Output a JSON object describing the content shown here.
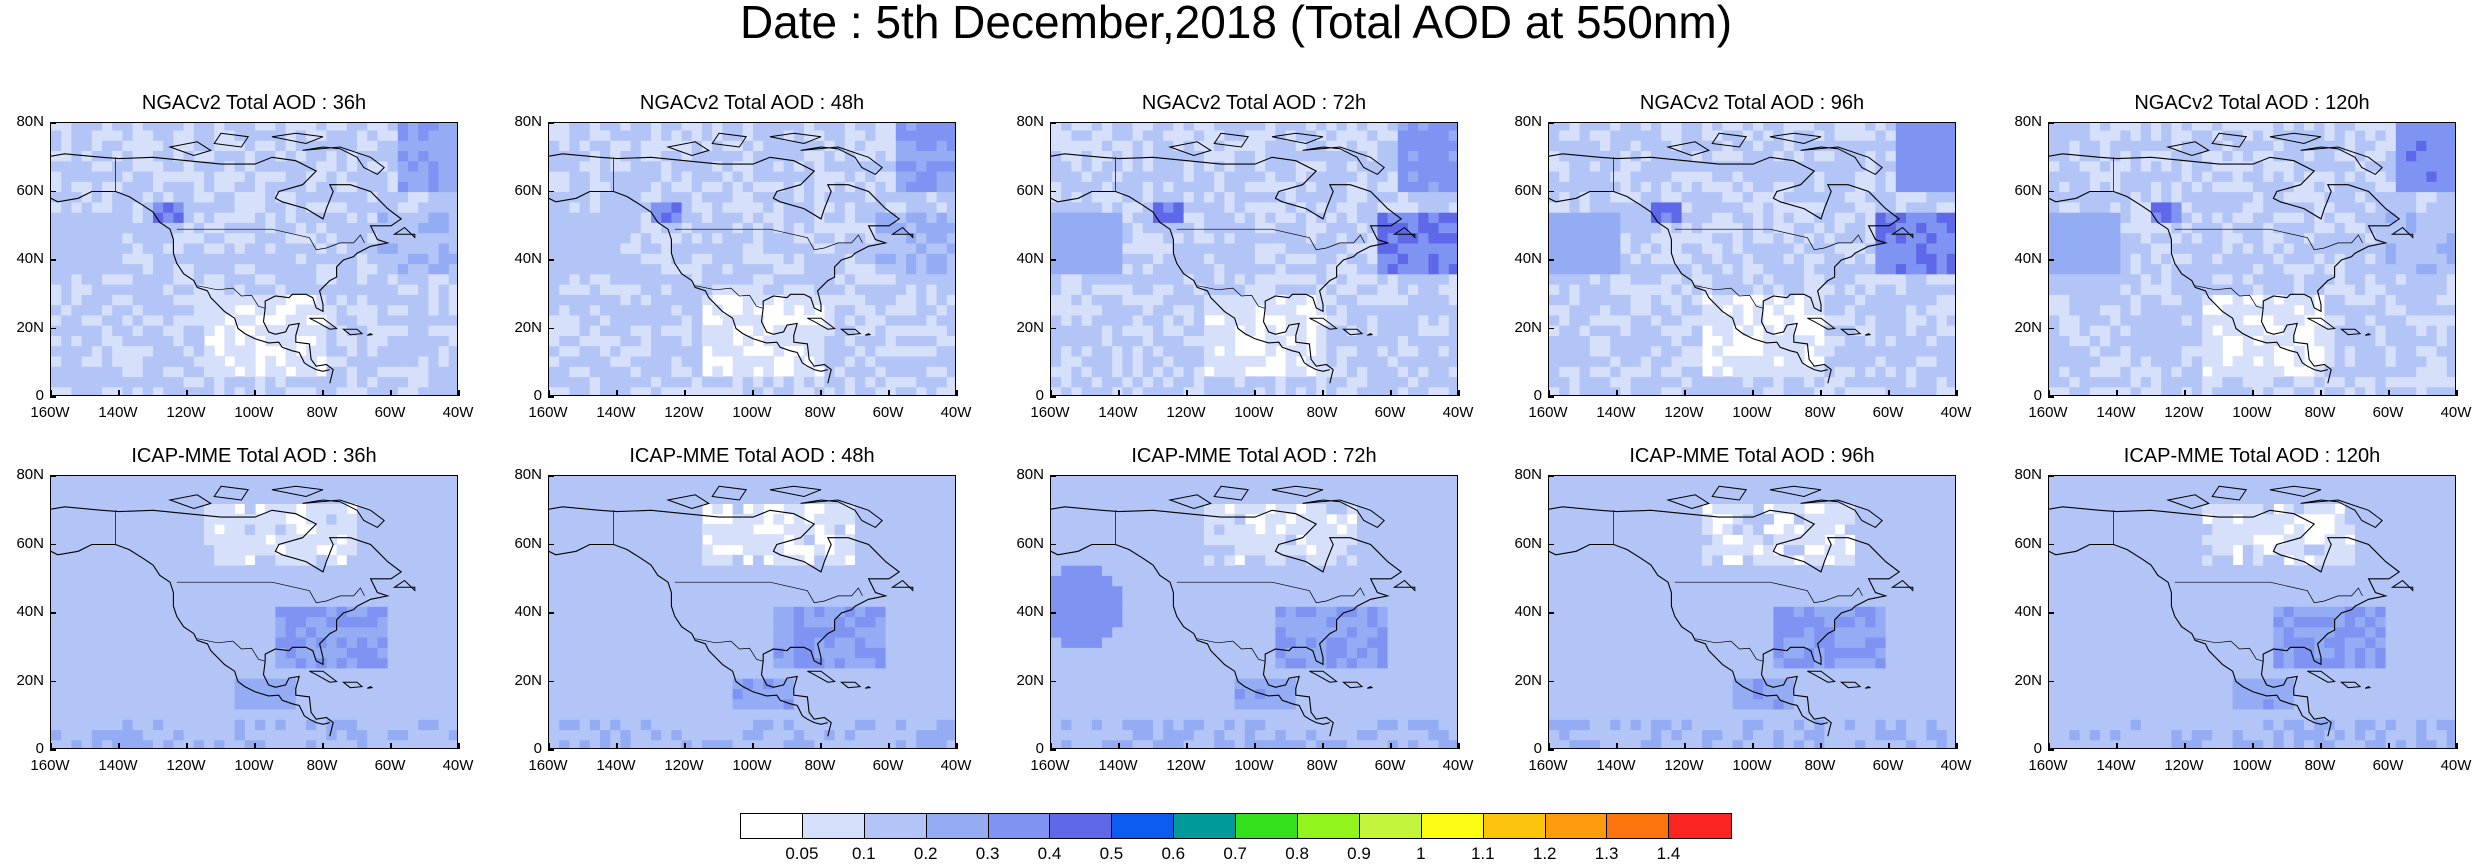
{
  "title": "Date : 5th December,2018 (Total AOD at 550nm)",
  "y_ticks": [
    "80N",
    "60N",
    "40N",
    "20N",
    "0"
  ],
  "x_ticks": [
    "160W",
    "140W",
    "120W",
    "100W",
    "80W",
    "60W",
    "40W"
  ],
  "panels": [
    {
      "title": "NGACv2 Total AOD : 36h"
    },
    {
      "title": "NGACv2 Total AOD : 48h"
    },
    {
      "title": "NGACv2 Total AOD : 72h"
    },
    {
      "title": "NGACv2 Total AOD : 96h"
    },
    {
      "title": "NGACv2 Total AOD : 120h"
    },
    {
      "title": "ICAP-MME Total AOD : 36h"
    },
    {
      "title": "ICAP-MME Total AOD : 48h"
    },
    {
      "title": "ICAP-MME Total AOD : 72h"
    },
    {
      "title": "ICAP-MME Total AOD : 96h"
    },
    {
      "title": "ICAP-MME Total AOD : 120h"
    }
  ],
  "colorbar": {
    "colors": [
      "#ffffff",
      "#d6e0fb",
      "#b3c4f6",
      "#93acf4",
      "#7f94f2",
      "#6068ea",
      "#0d5cf0",
      "#009a9a",
      "#34e01c",
      "#92f41c",
      "#c4f43c",
      "#fbfb14",
      "#fcc40c",
      "#fc9c0c",
      "#fc740c",
      "#fc2420"
    ],
    "labels": [
      "0.05",
      "0.1",
      "0.2",
      "0.3",
      "0.4",
      "0.5",
      "0.6",
      "0.7",
      "0.8",
      "0.9",
      "1",
      "1.1",
      "1.2",
      "1.3",
      "1.4"
    ]
  }
}
